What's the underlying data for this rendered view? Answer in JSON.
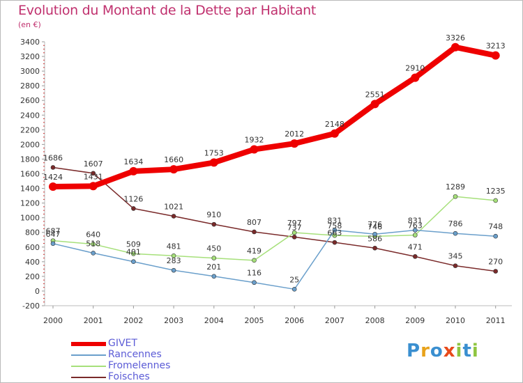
{
  "title": "Evolution du Montant de la Dette par Habitant",
  "unit": "(en €)",
  "logo": {
    "text": "Proxiti",
    "colors": [
      "#3a8fd0",
      "#e8a21a",
      "#3a8fd0",
      "#e84a1a",
      "#8fc540",
      "#3a8fd0",
      "#8fc540"
    ]
  },
  "chart_data": {
    "type": "line",
    "x": [
      "2000",
      "2001",
      "2002",
      "2003",
      "2004",
      "2005",
      "2006",
      "2007",
      "2008",
      "2009",
      "2010",
      "2011"
    ],
    "ylim": [
      -200,
      3400
    ],
    "yticks": [
      -200,
      0,
      200,
      400,
      600,
      800,
      1000,
      1200,
      1400,
      1600,
      1800,
      2000,
      2200,
      2400,
      2600,
      2800,
      3000,
      3200,
      3400
    ],
    "grid": false,
    "legend_placement": "bottom-left",
    "series": [
      {
        "name": "GIVET",
        "color": "#ee0000",
        "values": [
          1424,
          1431,
          1634,
          1660,
          1753,
          1932,
          2012,
          2148,
          2551,
          2910,
          3326,
          3213
        ]
      },
      {
        "name": "Rancennes",
        "color": "#6a9fcb",
        "values": [
          647,
          518,
          401,
          283,
          201,
          116,
          25,
          831,
          776,
          831,
          786,
          748
        ]
      },
      {
        "name": "Fromelennes",
        "color": "#a6e07a",
        "values": [
          687,
          640,
          509,
          481,
          450,
          419,
          797,
          758,
          746,
          763,
          1289,
          1235
        ]
      },
      {
        "name": "Foisches",
        "color": "#7a2a2a",
        "values": [
          1686,
          1607,
          1126,
          1021,
          910,
          807,
          737,
          663,
          586,
          471,
          345,
          270
        ]
      }
    ]
  }
}
